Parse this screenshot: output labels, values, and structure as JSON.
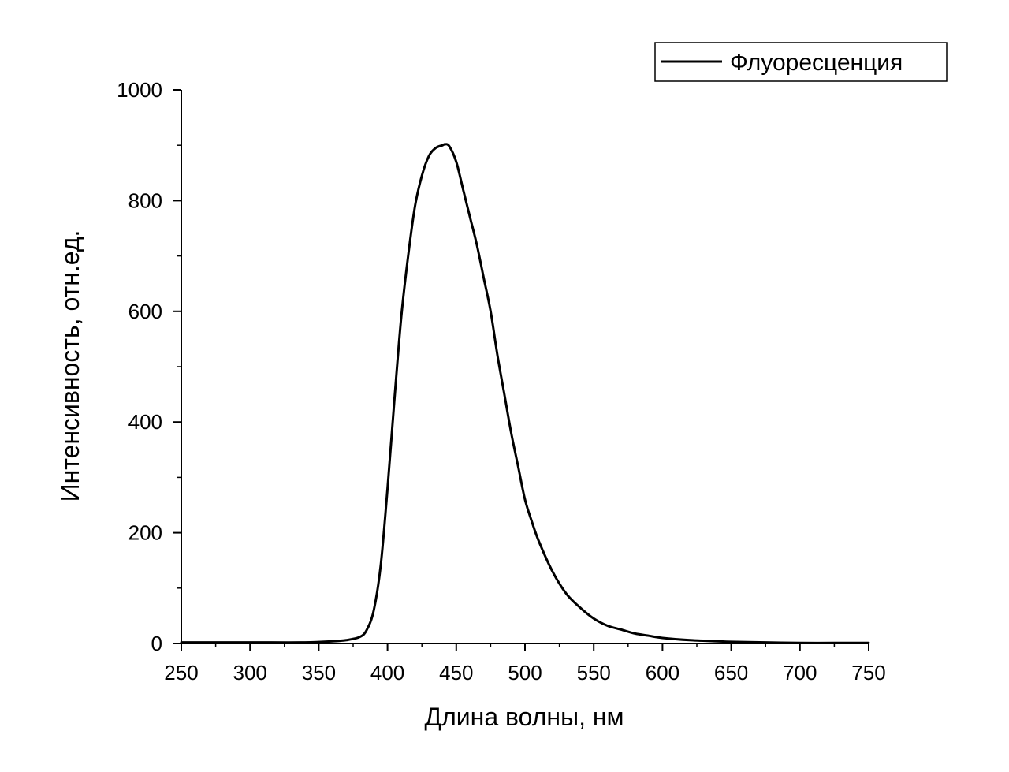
{
  "chart_data": {
    "type": "line",
    "xlabel": "Длина волны, нм",
    "ylabel": "Интенсивность, отн.ед.",
    "xlim": [
      250,
      750
    ],
    "ylim": [
      0,
      1000
    ],
    "x_ticks": [
      250,
      300,
      350,
      400,
      450,
      500,
      550,
      600,
      650,
      700,
      750
    ],
    "y_ticks": [
      0,
      200,
      400,
      600,
      800,
      1000
    ],
    "grid": false,
    "legend": "top-right",
    "series": [
      {
        "name": "Флуоресценция",
        "color": "#000000",
        "x": [
          250,
          300,
          340,
          360,
          370,
          380,
          385,
          390,
          395,
          400,
          405,
          410,
          415,
          420,
          425,
          430,
          435,
          440,
          442,
          445,
          450,
          455,
          460,
          465,
          470,
          475,
          480,
          485,
          490,
          495,
          500,
          505,
          510,
          520,
          530,
          540,
          550,
          560,
          570,
          580,
          590,
          600,
          620,
          640,
          650,
          675,
          700,
          725,
          750
        ],
        "y": [
          2,
          2,
          2,
          4,
          6,
          12,
          25,
          60,
          140,
          280,
          440,
          590,
          700,
          790,
          845,
          880,
          895,
          900,
          902,
          898,
          870,
          820,
          770,
          720,
          660,
          600,
          520,
          450,
          380,
          320,
          260,
          220,
          185,
          130,
          90,
          65,
          45,
          32,
          25,
          18,
          14,
          10,
          6,
          4,
          3,
          2,
          1,
          1,
          1
        ]
      }
    ]
  }
}
